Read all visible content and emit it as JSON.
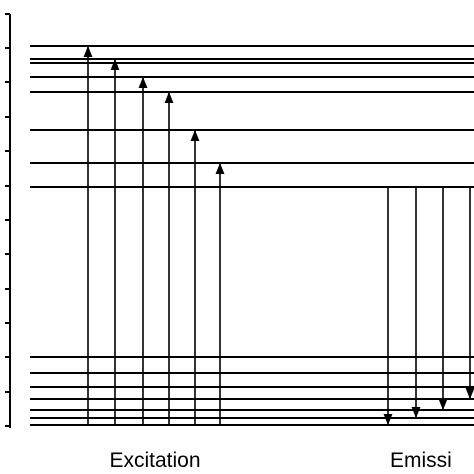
{
  "labels": {
    "excitation": "Excitation",
    "emission": "Emissi"
  }
}
